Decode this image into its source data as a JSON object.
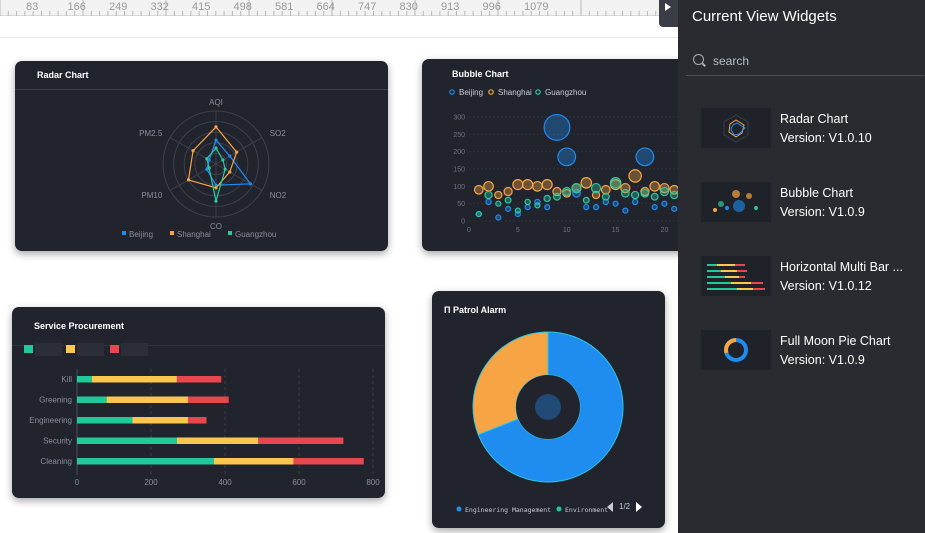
{
  "ruler": {
    "ticks": [
      "83",
      "166",
      "249",
      "332",
      "415",
      "498",
      "581",
      "664",
      "747",
      "830",
      "913",
      "996",
      "1079"
    ]
  },
  "side_panel": {
    "title": "Current View Widgets",
    "search_placeholder": "search",
    "widgets": [
      {
        "name": "Radar Chart",
        "version": "Version: V1.0.10",
        "icon": "radar-thumbnail"
      },
      {
        "name": "Bubble Chart",
        "version": "Version: V1.0.9",
        "icon": "bubble-thumbnail"
      },
      {
        "name": "Horizontal Multi Bar ...",
        "version": "Version: V1.0.12",
        "icon": "multibar-thumbnail"
      },
      {
        "name": "Full Moon Pie Chart",
        "version": "Version: V1.0.9",
        "icon": "donut-thumbnail"
      }
    ]
  },
  "colors": {
    "blue": "#1f8cf0",
    "orange": "#f7a544",
    "teal": "#2dc7a0",
    "green": "#20c997",
    "yellow": "#f9c74f",
    "red": "#e8474f",
    "card_bg": "#21242d"
  },
  "cards": {
    "radar": {
      "title": "Radar Chart"
    },
    "bubble": {
      "title": "Bubble Chart"
    },
    "bars": {
      "title": "Service Procurement"
    },
    "pie": {
      "title": "Π Patrol Alarm",
      "legend": [
        "Engineering Management",
        "Environment"
      ],
      "pager": "1/2"
    }
  },
  "chart_data": [
    {
      "type": "radar",
      "title": "Radar Chart",
      "indicators": [
        "AQI",
        "SO2",
        "NO2",
        "CO",
        "PM10",
        "PM2.5"
      ],
      "max": 100,
      "series": [
        {
          "name": "Beijing",
          "values": [
            45,
            30,
            75,
            40,
            20,
            15
          ]
        },
        {
          "name": "Shanghai",
          "values": [
            70,
            45,
            30,
            45,
            60,
            50
          ]
        },
        {
          "name": "Guangzhou",
          "values": [
            30,
            15,
            20,
            70,
            15,
            20
          ]
        }
      ]
    },
    {
      "type": "scatter",
      "title": "Bubble Chart",
      "yticks": [
        0,
        50,
        100,
        150,
        200,
        250,
        300
      ],
      "xticks": [
        0,
        5,
        10,
        15,
        20
      ],
      "xlim": [
        0,
        22
      ],
      "ylim": [
        0,
        300
      ],
      "series": [
        {
          "name": "Beijing",
          "points": [
            [
              1,
              20
            ],
            [
              2,
              55
            ],
            [
              3,
              10
            ],
            [
              4,
              35
            ],
            [
              5,
              20
            ],
            [
              6,
              40
            ],
            [
              7,
              55
            ],
            [
              8,
              40
            ],
            [
              9,
              270
            ],
            [
              10,
              185
            ],
            [
              11,
              80
            ],
            [
              12,
              40
            ],
            [
              13,
              40
            ],
            [
              14,
              55
            ],
            [
              15,
              50
            ],
            [
              16,
              30
            ],
            [
              17,
              55
            ],
            [
              18,
              185
            ],
            [
              19,
              40
            ],
            [
              20,
              50
            ],
            [
              21,
              35
            ],
            [
              22,
              50
            ]
          ]
        },
        {
          "name": "Shanghai",
          "points": [
            [
              1,
              90
            ],
            [
              2,
              100
            ],
            [
              3,
              75
            ],
            [
              4,
              85
            ],
            [
              5,
              105
            ],
            [
              6,
              105
            ],
            [
              7,
              100
            ],
            [
              8,
              105
            ],
            [
              9,
              85
            ],
            [
              10,
              80
            ],
            [
              11,
              95
            ],
            [
              12,
              110
            ],
            [
              13,
              75
            ],
            [
              14,
              90
            ],
            [
              15,
              105
            ],
            [
              16,
              95
            ],
            [
              17,
              130
            ],
            [
              18,
              85
            ],
            [
              19,
              100
            ],
            [
              20,
              95
            ],
            [
              21,
              90
            ],
            [
              22,
              100
            ]
          ]
        },
        {
          "name": "Guangzhou",
          "points": [
            [
              1,
              20
            ],
            [
              2,
              75
            ],
            [
              3,
              50
            ],
            [
              4,
              60
            ],
            [
              5,
              30
            ],
            [
              6,
              55
            ],
            [
              7,
              45
            ],
            [
              8,
              65
            ],
            [
              9,
              70
            ],
            [
              10,
              85
            ],
            [
              11,
              95
            ],
            [
              12,
              60
            ],
            [
              13,
              95
            ],
            [
              14,
              70
            ],
            [
              15,
              110
            ],
            [
              16,
              80
            ],
            [
              17,
              75
            ],
            [
              18,
              80
            ],
            [
              19,
              70
            ],
            [
              20,
              85
            ],
            [
              21,
              75
            ],
            [
              22,
              80
            ]
          ]
        }
      ]
    },
    {
      "type": "bar",
      "title": "Service Procurement",
      "orientation": "horizontal",
      "stacked": true,
      "categories": [
        "Kill",
        "Greening",
        "Engineering",
        "Security",
        "Cleaning"
      ],
      "xticks": [
        0,
        200,
        400,
        600,
        800
      ],
      "xlim": [
        0,
        800
      ],
      "series": [
        {
          "values": [
            40,
            80,
            150,
            270,
            370
          ]
        },
        {
          "values": [
            230,
            220,
            150,
            220,
            215
          ]
        },
        {
          "values": [
            120,
            110,
            50,
            230,
            190
          ]
        }
      ]
    },
    {
      "type": "pie",
      "title": "Π Patrol Alarm",
      "donut": true,
      "slices": [
        {
          "name": "Engineering Management",
          "value": 69
        },
        {
          "name": "Environment",
          "value": 31
        }
      ]
    }
  ]
}
